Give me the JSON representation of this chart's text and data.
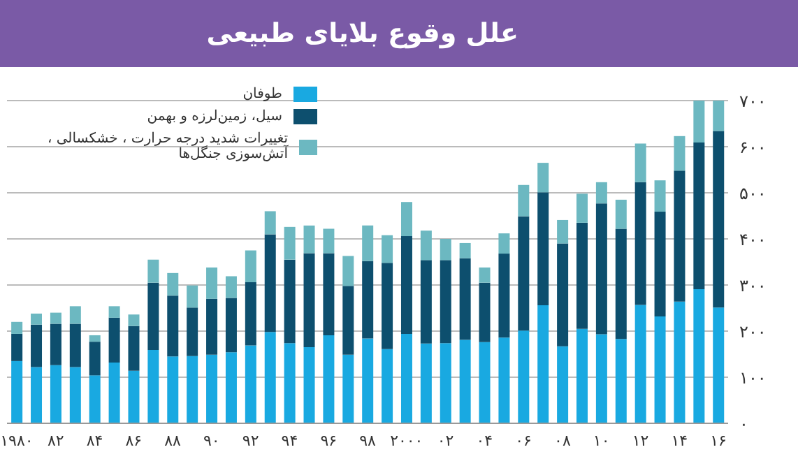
{
  "chart_data": {
    "type": "bar",
    "title": "علل وقوع بلایای طبیعی",
    "stacked": true,
    "categories": [
      "۱۹۸۰",
      null,
      "۸۲",
      null,
      "۸۴",
      null,
      "۸۶",
      null,
      "۸۸",
      null,
      "۹۰",
      null,
      "۹۲",
      null,
      "۹۴",
      null,
      "۹۶",
      null,
      "۹۸",
      null,
      "۲۰۰۰",
      null,
      "۰۲",
      null,
      "۰۴",
      null,
      "۰۶",
      null,
      "۰۸",
      null,
      "۱۰",
      null,
      "۱۲",
      null,
      "۱۴",
      null,
      "۱۶"
    ],
    "series": [
      {
        "name": "طوفان",
        "color": "#19a9e1",
        "values": [
          135,
          122,
          126,
          122,
          104,
          132,
          114,
          159,
          145,
          146,
          149,
          154,
          169,
          198,
          174,
          165,
          191,
          149,
          184,
          161,
          194,
          173,
          174,
          181,
          176,
          186,
          201,
          256,
          167,
          205,
          193,
          183,
          257,
          232,
          264,
          291,
          251
        ]
      },
      {
        "name": "سیل، زمین‌لرزه و بهمن",
        "color": "#0d4f6e",
        "values": [
          59,
          92,
          90,
          94,
          73,
          97,
          97,
          146,
          132,
          105,
          121,
          118,
          137,
          212,
          181,
          204,
          178,
          149,
          168,
          187,
          212,
          181,
          180,
          177,
          129,
          182,
          248,
          245,
          223,
          230,
          284,
          239,
          266,
          227,
          284,
          318,
          383
        ]
      },
      {
        "name": "تغییرات شدید درجه حرارت ، خشکسالی ، آتش‌سوزی جنگل‌ها",
        "color": "#6cb8c1",
        "values": [
          26,
          24,
          24,
          38,
          14,
          25,
          25,
          50,
          49,
          48,
          68,
          47,
          69,
          50,
          71,
          60,
          53,
          65,
          77,
          60,
          74,
          64,
          46,
          33,
          33,
          44,
          68,
          64,
          51,
          63,
          46,
          63,
          84,
          68,
          75,
          91,
          66
        ]
      }
    ],
    "ylim": [
      0,
      700
    ],
    "yticks": [
      {
        "value": 0,
        "label": "۰"
      },
      {
        "value": 100,
        "label": "۱۰۰"
      },
      {
        "value": 200,
        "label": "۲۰۰"
      },
      {
        "value": 300,
        "label": "۳۰۰"
      },
      {
        "value": 400,
        "label": "۴۰۰"
      },
      {
        "value": 500,
        "label": "۵۰۰"
      },
      {
        "value": 600,
        "label": "۶۰۰"
      },
      {
        "value": 700,
        "label": "۷۰۰"
      }
    ],
    "grid": "y",
    "legend": "top left"
  }
}
